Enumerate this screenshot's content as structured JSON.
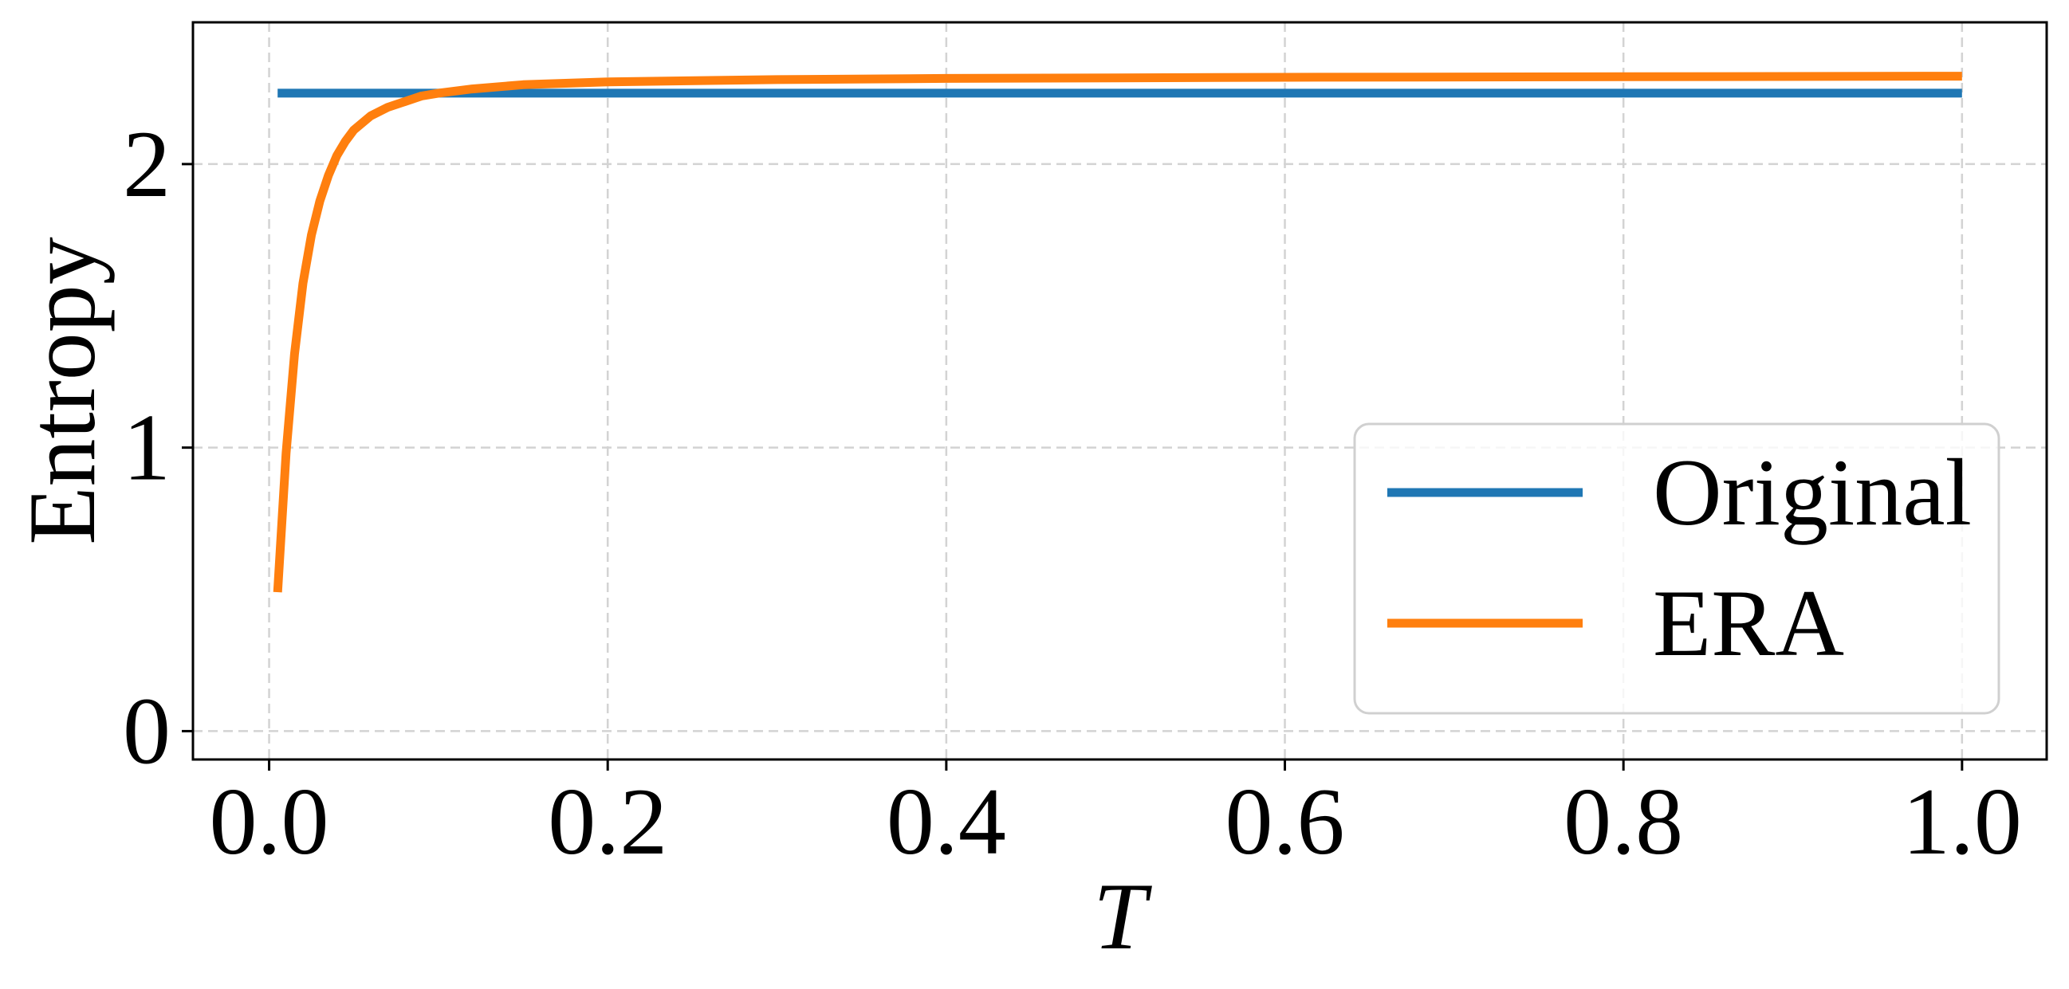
{
  "chart_data": {
    "type": "line",
    "title": "",
    "xlabel": "T",
    "ylabel": "Entropy",
    "xlim": [
      -0.045,
      1.05
    ],
    "ylim": [
      -0.1,
      2.5
    ],
    "x_ticks": [
      "0.0",
      "0.2",
      "0.4",
      "0.6",
      "0.8",
      "1.0"
    ],
    "y_ticks": [
      "0",
      "1",
      "2"
    ],
    "grid": true,
    "legend_position": "lower-right",
    "series": [
      {
        "name": "Original",
        "color": "#1f77b4",
        "x": [
          0.005,
          1.0
        ],
        "y": [
          2.25,
          2.25
        ]
      },
      {
        "name": "ERA",
        "color": "#ff7f0e",
        "x": [
          0.005,
          0.01,
          0.015,
          0.02,
          0.025,
          0.03,
          0.035,
          0.04,
          0.045,
          0.05,
          0.06,
          0.07,
          0.08,
          0.09,
          0.1,
          0.12,
          0.15,
          0.2,
          0.3,
          0.4,
          0.5,
          0.6,
          0.8,
          1.0
        ],
        "y": [
          0.49,
          0.98,
          1.33,
          1.58,
          1.75,
          1.87,
          1.96,
          2.03,
          2.08,
          2.12,
          2.17,
          2.2,
          2.22,
          2.24,
          2.25,
          2.265,
          2.28,
          2.29,
          2.298,
          2.302,
          2.304,
          2.306,
          2.308,
          2.31
        ]
      }
    ]
  }
}
